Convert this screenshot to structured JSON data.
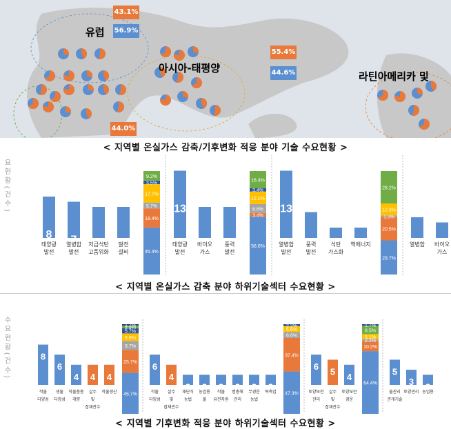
{
  "map": {
    "regions": [
      {
        "name": "유럽",
        "color": "#1f4fa0",
        "top_pct": "43.1%",
        "bottom_pct": "56.9%"
      },
      {
        "name": "아시아-태평양",
        "color": "#e86a1f",
        "top_pct": "55.4%",
        "bottom_pct": "44.6%"
      },
      {
        "name": "라틴아메리카 및",
        "color": "#e86a1f"
      }
    ],
    "africa_pct": "44.0%",
    "colors": {
      "ocean": "#dfe4ea",
      "land": "#c9c9c9",
      "orange": "#e8793a",
      "blue": "#5b8fd0"
    }
  },
  "captions": {
    "map": "< 지역별 온실가스 감축/기후변화 적응 분야 기술 수요현황 >",
    "mitigation": "< 지역별 온실가스 감축 분야 하위기술섹터 수요현황 >",
    "adaptation": "< 지역별 기후변화 적응 분야 하위기술섹터 수요현황 >"
  },
  "chart_data": [
    {
      "type": "bar",
      "ylabel": "요 현 황 ( 건 수 )",
      "groups": [
        {
          "categories": [
            "태양광 발전",
            "열병합 발전",
            "저급석탄 고품위화",
            "발전 설비"
          ],
          "values": [
            8,
            7,
            6,
            6
          ],
          "stack": [
            {
              "pct": "45.4%",
              "color": "#5b8fd0",
              "v": 45.4
            },
            {
              "pct": "18.4%",
              "color": "#e8793a",
              "v": 18.4
            },
            {
              "pct": "5.7%",
              "color": "#a5a5a5",
              "v": 5.7
            },
            {
              "pct": "17.7%",
              "color": "#ffc000",
              "v": 17.7
            },
            {
              "pct": "3.5%",
              "color": "#2f5597",
              "v": 3.5
            },
            {
              "pct": "9.2%",
              "color": "#70ad47",
              "v": 9.2
            }
          ]
        },
        {
          "categories": [
            "태양광 발전",
            "바이오 가스",
            "풍력 발전"
          ],
          "values": [
            13,
            6,
            6
          ],
          "stack": [
            {
              "pct": "56.0%",
              "color": "#5b8fd0",
              "v": 56.0
            },
            {
              "pct": "3.4%",
              "color": "#e8793a",
              "v": 3.4
            },
            {
              "pct": "8.6%",
              "color": "#a5a5a5",
              "v": 8.6
            },
            {
              "pct": "12.1%",
              "color": "#ffc000",
              "v": 12.1
            },
            {
              "pct": "3.4%",
              "color": "#2f5597",
              "v": 3.4
            },
            {
              "pct": "16.4%",
              "color": "#70ad47",
              "v": 16.4
            }
          ]
        },
        {
          "categories": [
            "열병합 발전",
            "풍력 발전",
            "석탄 가스화",
            "핵에너지"
          ],
          "values": [
            13,
            5,
            2,
            2
          ],
          "stack": [
            {
              "pct": "29.7%",
              "color": "#5b8fd0",
              "v": 29.7
            },
            {
              "pct": "20.5%",
              "color": "#e8793a",
              "v": 20.5
            },
            {
              "pct": "1.3%",
              "color": "#a5a5a5",
              "v": 1.3
            },
            {
              "pct": "10.3%",
              "color": "#ffc000",
              "v": 10.3
            },
            {
              "pct": "28.2%",
              "color": "#70ad47",
              "v": 28.2
            }
          ]
        },
        {
          "categories": [
            "열병합",
            "바이오 가스"
          ],
          "values": [
            4,
            3
          ],
          "stack": null
        }
      ]
    },
    {
      "type": "bar",
      "ylabel": "수 요 현 황 ( 건 수 )",
      "groups": [
        {
          "categories": [
            "작물 다양성",
            "생물 다양성",
            "작물품종 개량",
            "살수 및 잡재관수",
            "작물생산"
          ],
          "values": [
            8,
            6,
            4,
            4,
            4
          ],
          "colors": [
            "#5b8fd0",
            "#5b8fd0",
            "#5b8fd0",
            "#e8793a",
            "#e8793a"
          ],
          "stack": [
            {
              "pct": "45.7%",
              "color": "#5b8fd0",
              "v": 45.7
            },
            {
              "pct": "25.7%",
              "color": "#e8793a",
              "v": 25.7
            },
            {
              "pct": "9.7%",
              "color": "#a5a5a5",
              "v": 9.7
            },
            {
              "pct": "8.6%",
              "color": "#ffc000",
              "v": 8.6
            },
            {
              "pct": "5.7%",
              "color": "#2f5597",
              "v": 5.7
            },
            {
              "pct": "2.9%",
              "color": "#70ad47",
              "v": 2.9
            },
            {
              "pct": "1.7%",
              "color": "#264478",
              "v": 1.7
            }
          ]
        },
        {
          "categories": [
            "작물 다양성",
            "살수 및 잡재관수",
            "재단식 농법",
            "농업용 물",
            "작물 유전자원",
            "병충해 관리",
            "무경운 농법",
            "목축업"
          ],
          "values": [
            6,
            4,
            2,
            2,
            2,
            2,
            2,
            2
          ],
          "colors": [
            "#5b8fd0",
            "#e8793a",
            "#5b8fd0",
            "#5b8fd0",
            "#5b8fd0",
            "#5b8fd0",
            "#5b8fd0",
            "#5b8fd0"
          ],
          "stack": [
            {
              "pct": "47.3%",
              "color": "#5b8fd0",
              "v": 47.3
            },
            {
              "pct": "37.4%",
              "color": "#e8793a",
              "v": 37.4
            },
            {
              "pct": "6.6%",
              "color": "#a5a5a5",
              "v": 6.6
            },
            {
              "pct": "6.6%",
              "color": "#ffc000",
              "v": 6.6
            },
            {
              "pct": "2.2%",
              "color": "#2f5597",
              "v": 2.2
            }
          ]
        },
        {
          "categories": [
            "토양보전 관리",
            "살수 및 잡재관수",
            "토양보전 경운"
          ],
          "values": [
            6,
            5,
            4
          ],
          "colors": [
            "#5b8fd0",
            "#e8793a",
            "#5b8fd0"
          ],
          "stack": [
            {
              "pct": "64.4%",
              "color": "#5b8fd0",
              "v": 64.4
            },
            {
              "pct": "10.2%",
              "color": "#e8793a",
              "v": 10.2
            },
            {
              "pct": "2.2%",
              "color": "#a5a5a5",
              "v": 2.2
            },
            {
              "pct": "5.1%",
              "color": "#ffc000",
              "v": 5.1
            },
            {
              "pct": "8.5%",
              "color": "#70ad47",
              "v": 8.5
            },
            {
              "pct": "1.7%",
              "color": "#2f5597",
              "v": 1.7
            }
          ]
        },
        {
          "categories": [
            "물관리 관개기술",
            "토양관리",
            "농업용"
          ],
          "values": [
            5,
            3,
            2
          ],
          "colors": [
            "#5b8fd0",
            "#5b8fd0",
            "#5b8fd0"
          ],
          "stack": null
        }
      ]
    }
  ]
}
